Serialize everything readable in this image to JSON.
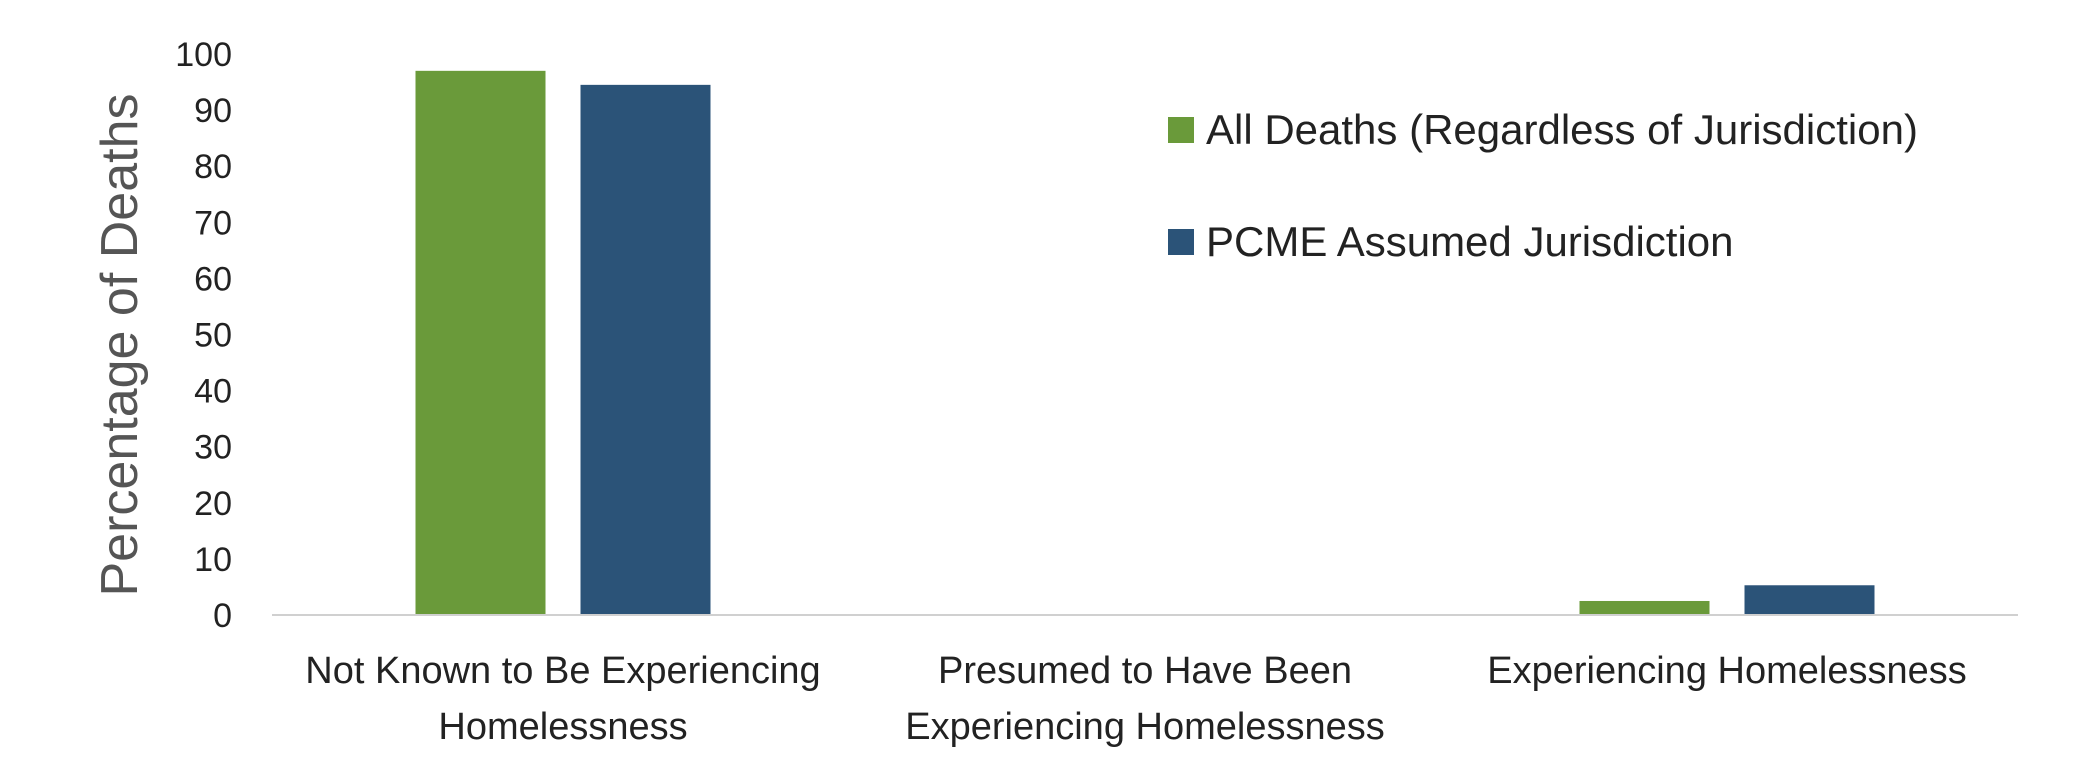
{
  "chart_data": {
    "type": "bar",
    "title": "",
    "xlabel": "",
    "ylabel": "Percentage of Deaths",
    "ylim": [
      0,
      100
    ],
    "yticks": [
      0,
      10,
      20,
      30,
      40,
      50,
      60,
      70,
      80,
      90,
      100
    ],
    "grid": false,
    "legend_position": "top-right",
    "categories": [
      [
        "Not Known to Be Experiencing",
        "Homelessness"
      ],
      [
        "Presumed to Have Been",
        "Experiencing Homelessness"
      ],
      [
        "Experiencing Homelessness"
      ]
    ],
    "series": [
      {
        "name": "All Deaths (Regardless of Jurisdiction)",
        "color": "#6a9a3a",
        "values": [
          97,
          0,
          2.5
        ]
      },
      {
        "name": "PCME Assumed Jurisdiction",
        "color": "#2b5378",
        "values": [
          94.5,
          0,
          5.3
        ]
      }
    ],
    "axis_color": "#d0d0d0"
  }
}
